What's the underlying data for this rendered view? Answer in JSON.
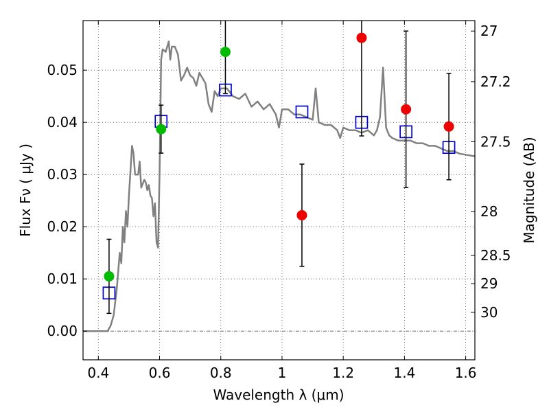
{
  "chart_data": {
    "type": "scatter",
    "xlabel": "Wavelength  λ (μm)",
    "ylabel": "Flux  Fν  ( μJy )",
    "ylabel_right": "Magnitude (AB)",
    "xlim": [
      0.35,
      1.63
    ],
    "ylim": [
      -0.0055,
      0.0595
    ],
    "grid": true,
    "x_ticks": [
      {
        "value": 0.4,
        "label": "0.4"
      },
      {
        "value": 0.6,
        "label": "0.6"
      },
      {
        "value": 0.8,
        "label": "0.8"
      },
      {
        "value": 1.0,
        "label": "1"
      },
      {
        "value": 1.2,
        "label": "1.2"
      },
      {
        "value": 1.4,
        "label": "1.4"
      },
      {
        "value": 1.6,
        "label": "1.6"
      }
    ],
    "y_ticks": [
      {
        "value": 0.0,
        "label": "0.00"
      },
      {
        "value": 0.01,
        "label": "0.01"
      },
      {
        "value": 0.02,
        "label": "0.02"
      },
      {
        "value": 0.03,
        "label": "0.03"
      },
      {
        "value": 0.04,
        "label": "0.04"
      },
      {
        "value": 0.05,
        "label": "0.05"
      }
    ],
    "mag_ticks": [
      {
        "value": 0.0575,
        "label": "27"
      },
      {
        "value": 0.0478,
        "label": "27.2"
      },
      {
        "value": 0.0363,
        "label": "27.5"
      },
      {
        "value": 0.0229,
        "label": "28"
      },
      {
        "value": 0.0145,
        "label": "28.5"
      },
      {
        "value": 0.0091,
        "label": "29"
      },
      {
        "value": 0.0036,
        "label": "30"
      }
    ],
    "colors": {
      "model": "#808080",
      "green": "#00bb00",
      "red": "#ee0000",
      "box": "#0000cc",
      "errorbar": "#000000",
      "grid": "#555555"
    },
    "series": [
      {
        "name": "model spectrum",
        "type": "line",
        "points": [
          [
            0.35,
            0.0
          ],
          [
            0.43,
            0.0
          ],
          [
            0.44,
            0.001
          ],
          [
            0.45,
            0.003
          ],
          [
            0.46,
            0.008
          ],
          [
            0.47,
            0.015
          ],
          [
            0.475,
            0.013
          ],
          [
            0.48,
            0.02
          ],
          [
            0.485,
            0.017
          ],
          [
            0.49,
            0.023
          ],
          [
            0.495,
            0.02
          ],
          [
            0.5,
            0.026
          ],
          [
            0.51,
            0.0355
          ],
          [
            0.515,
            0.034
          ],
          [
            0.52,
            0.03
          ],
          [
            0.53,
            0.03
          ],
          [
            0.535,
            0.0325
          ],
          [
            0.54,
            0.0275
          ],
          [
            0.55,
            0.029
          ],
          [
            0.555,
            0.0285
          ],
          [
            0.56,
            0.027
          ],
          [
            0.565,
            0.028
          ],
          [
            0.57,
            0.026
          ],
          [
            0.575,
            0.0255
          ],
          [
            0.58,
            0.022
          ],
          [
            0.585,
            0.0245
          ],
          [
            0.59,
            0.017
          ],
          [
            0.595,
            0.016
          ],
          [
            0.6,
            0.03
          ],
          [
            0.605,
            0.052
          ],
          [
            0.61,
            0.054
          ],
          [
            0.62,
            0.0535
          ],
          [
            0.63,
            0.0555
          ],
          [
            0.635,
            0.052
          ],
          [
            0.64,
            0.0545
          ],
          [
            0.65,
            0.0545
          ],
          [
            0.66,
            0.053
          ],
          [
            0.67,
            0.048
          ],
          [
            0.68,
            0.049
          ],
          [
            0.69,
            0.0505
          ],
          [
            0.7,
            0.049
          ],
          [
            0.71,
            0.0485
          ],
          [
            0.72,
            0.047
          ],
          [
            0.73,
            0.0495
          ],
          [
            0.74,
            0.0485
          ],
          [
            0.75,
            0.0475
          ],
          [
            0.76,
            0.0435
          ],
          [
            0.77,
            0.042
          ],
          [
            0.78,
            0.046
          ],
          [
            0.79,
            0.045
          ],
          [
            0.8,
            0.0465
          ],
          [
            0.82,
            0.0465
          ],
          [
            0.84,
            0.045
          ],
          [
            0.86,
            0.0445
          ],
          [
            0.88,
            0.0455
          ],
          [
            0.9,
            0.043
          ],
          [
            0.92,
            0.044
          ],
          [
            0.94,
            0.0425
          ],
          [
            0.96,
            0.0435
          ],
          [
            0.98,
            0.0415
          ],
          [
            0.99,
            0.039
          ],
          [
            1.0,
            0.0425
          ],
          [
            1.02,
            0.0425
          ],
          [
            1.04,
            0.0415
          ],
          [
            1.06,
            0.0415
          ],
          [
            1.08,
            0.041
          ],
          [
            1.1,
            0.0405
          ],
          [
            1.11,
            0.0465
          ],
          [
            1.12,
            0.04
          ],
          [
            1.14,
            0.0395
          ],
          [
            1.16,
            0.0395
          ],
          [
            1.18,
            0.0385
          ],
          [
            1.19,
            0.037
          ],
          [
            1.2,
            0.039
          ],
          [
            1.22,
            0.0385
          ],
          [
            1.24,
            0.0385
          ],
          [
            1.26,
            0.038
          ],
          [
            1.28,
            0.0385
          ],
          [
            1.3,
            0.0375
          ],
          [
            1.31,
            0.0385
          ],
          [
            1.32,
            0.041
          ],
          [
            1.33,
            0.0505
          ],
          [
            1.34,
            0.039
          ],
          [
            1.35,
            0.0375
          ],
          [
            1.36,
            0.037
          ],
          [
            1.38,
            0.0365
          ],
          [
            1.4,
            0.0365
          ],
          [
            1.42,
            0.0365
          ],
          [
            1.44,
            0.036
          ],
          [
            1.46,
            0.036
          ],
          [
            1.48,
            0.0355
          ],
          [
            1.5,
            0.0355
          ],
          [
            1.52,
            0.035
          ],
          [
            1.54,
            0.0345
          ],
          [
            1.56,
            0.0345
          ],
          [
            1.58,
            0.034
          ],
          [
            1.6,
            0.0338
          ],
          [
            1.63,
            0.0335
          ]
        ]
      },
      {
        "name": "green detections",
        "type": "scatter",
        "color": "green",
        "points": [
          {
            "x": 0.435,
            "y": 0.0105,
            "err": 0.0071
          },
          {
            "x": 0.605,
            "y": 0.0387,
            "err": 0.0046
          },
          {
            "x": 0.815,
            "y": 0.0535,
            "err": 0.008
          }
        ]
      },
      {
        "name": "red detections",
        "type": "scatter",
        "color": "red",
        "points": [
          {
            "x": 1.065,
            "y": 0.0222,
            "err": 0.0098
          },
          {
            "x": 1.26,
            "y": 0.0562,
            "err": 0.0188
          },
          {
            "x": 1.405,
            "y": 0.0425,
            "err": 0.015
          },
          {
            "x": 1.545,
            "y": 0.0392,
            "err": 0.0102
          }
        ]
      },
      {
        "name": "model fluxes",
        "type": "scatter",
        "marker": "square",
        "color": "box",
        "points": [
          {
            "x": 0.435,
            "y": 0.0073
          },
          {
            "x": 0.605,
            "y": 0.0402
          },
          {
            "x": 0.815,
            "y": 0.0462
          },
          {
            "x": 1.065,
            "y": 0.042
          },
          {
            "x": 1.26,
            "y": 0.04
          },
          {
            "x": 1.405,
            "y": 0.0382
          },
          {
            "x": 1.545,
            "y": 0.0352
          }
        ]
      }
    ]
  }
}
